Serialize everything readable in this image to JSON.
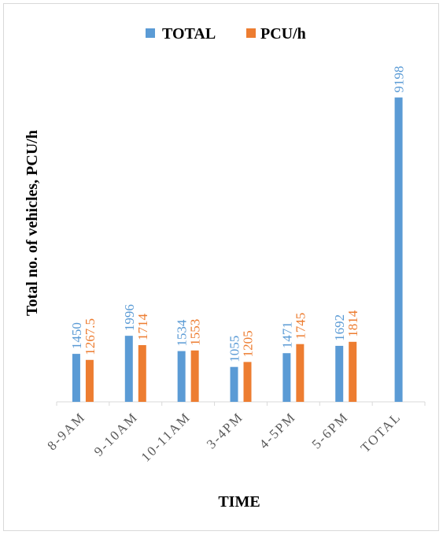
{
  "chart_data": {
    "type": "bar",
    "xlabel": "TIME",
    "ylabel": "Total no. of vehicles, PCU/h",
    "categories": [
      "8-9AM",
      "9-10AM",
      "10-11AM",
      "3-4PM",
      "4-5PM",
      "5-6PM",
      "TOTAL"
    ],
    "series": [
      {
        "name": "TOTAL",
        "color": "#5b9bd5",
        "values": [
          1450,
          1996,
          1534,
          1055,
          1471,
          1692,
          9198
        ],
        "labels": [
          "1450",
          "1996",
          "1534",
          "1055",
          "1471",
          "1692",
          "9198"
        ]
      },
      {
        "name": "PCU/h",
        "color": "#ed7d31",
        "values": [
          1267.5,
          1714,
          1553,
          1205,
          1745,
          1814,
          null
        ],
        "labels": [
          "1267.5",
          "1714",
          "1553",
          "1205",
          "1745",
          "1814",
          ""
        ]
      }
    ],
    "ylim": [
      0,
      10000
    ],
    "grid": false,
    "legend_position": "top"
  }
}
